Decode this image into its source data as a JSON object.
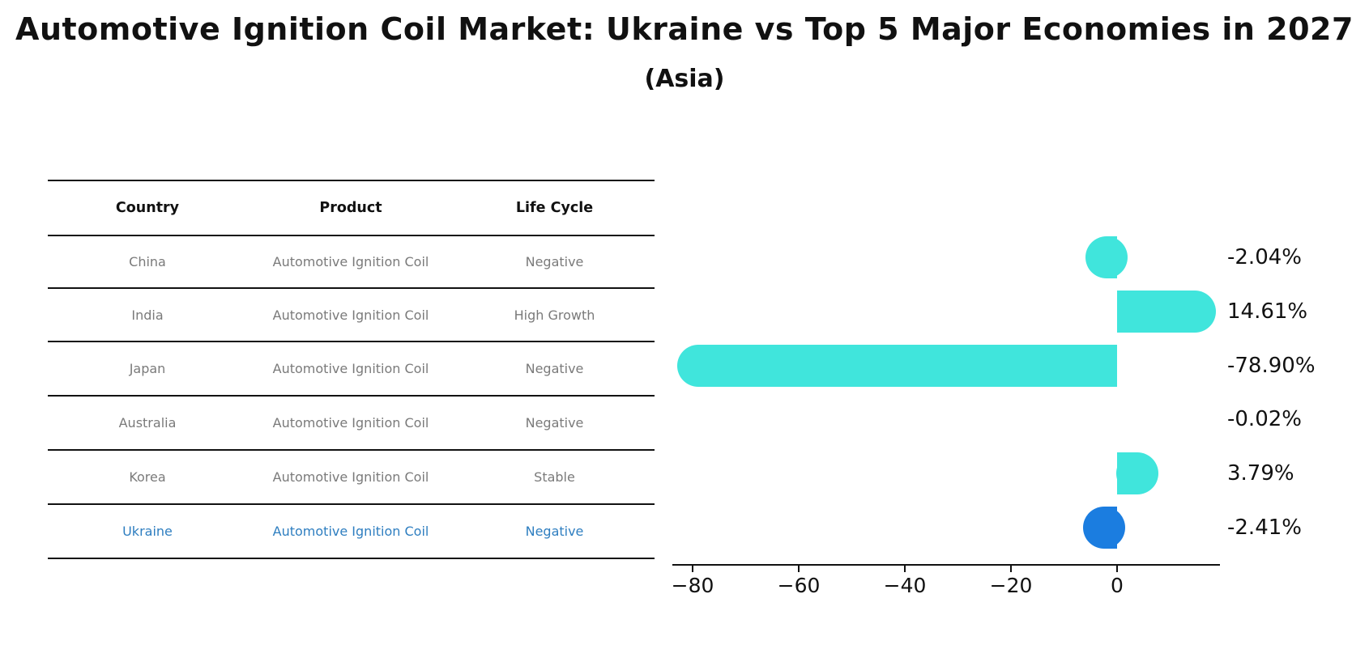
{
  "title": "Automotive Ignition Coil Market: Ukraine vs Top 5 Major Economies in 2027",
  "subtitle": "(Asia)",
  "colors": {
    "bar_default": "#40e5dc",
    "bar_highlight": "#1b7de0",
    "table_text": "#7a7a7a",
    "table_highlight_text": "#2e7ec0",
    "axis": "#111111"
  },
  "table": {
    "headers": [
      "Country",
      "Product",
      "Life Cycle"
    ],
    "rows": [
      {
        "country": "China",
        "product": "Automotive Ignition Coil",
        "life_cycle": "Negative",
        "highlight": false
      },
      {
        "country": "India",
        "product": "Automotive Ignition Coil",
        "life_cycle": "High Growth",
        "highlight": false
      },
      {
        "country": "Japan",
        "product": "Automotive Ignition Coil",
        "life_cycle": "Negative",
        "highlight": false
      },
      {
        "country": "Australia",
        "product": "Automotive Ignition Coil",
        "life_cycle": "Negative",
        "highlight": false
      },
      {
        "country": "Korea",
        "product": "Automotive Ignition Coil",
        "life_cycle": "Stable",
        "highlight": false
      },
      {
        "country": "Ukraine",
        "product": "Automotive Ignition Coil",
        "life_cycle": "Negative",
        "highlight": true
      }
    ]
  },
  "chart_data": {
    "type": "bar",
    "orientation": "horizontal",
    "categories": [
      "China",
      "India",
      "Japan",
      "Australia",
      "Korea",
      "Ukraine"
    ],
    "values": [
      -2.04,
      14.61,
      -78.9,
      -0.02,
      3.79,
      -2.41
    ],
    "value_labels": [
      "-2.04%",
      "14.61%",
      "-78.90%",
      "-0.02%",
      "3.79%",
      "-2.41%"
    ],
    "highlight_category": "Ukraine",
    "x_ticks": [
      -80,
      -60,
      -40,
      -20,
      0
    ],
    "x_tick_labels": [
      "−80",
      "−60",
      "−40",
      "−20",
      "0"
    ],
    "xlim": [
      -84,
      19.5
    ],
    "ylabel": "",
    "xlabel": "",
    "grid": false,
    "legend": false,
    "value_label_position": "outside-right"
  }
}
